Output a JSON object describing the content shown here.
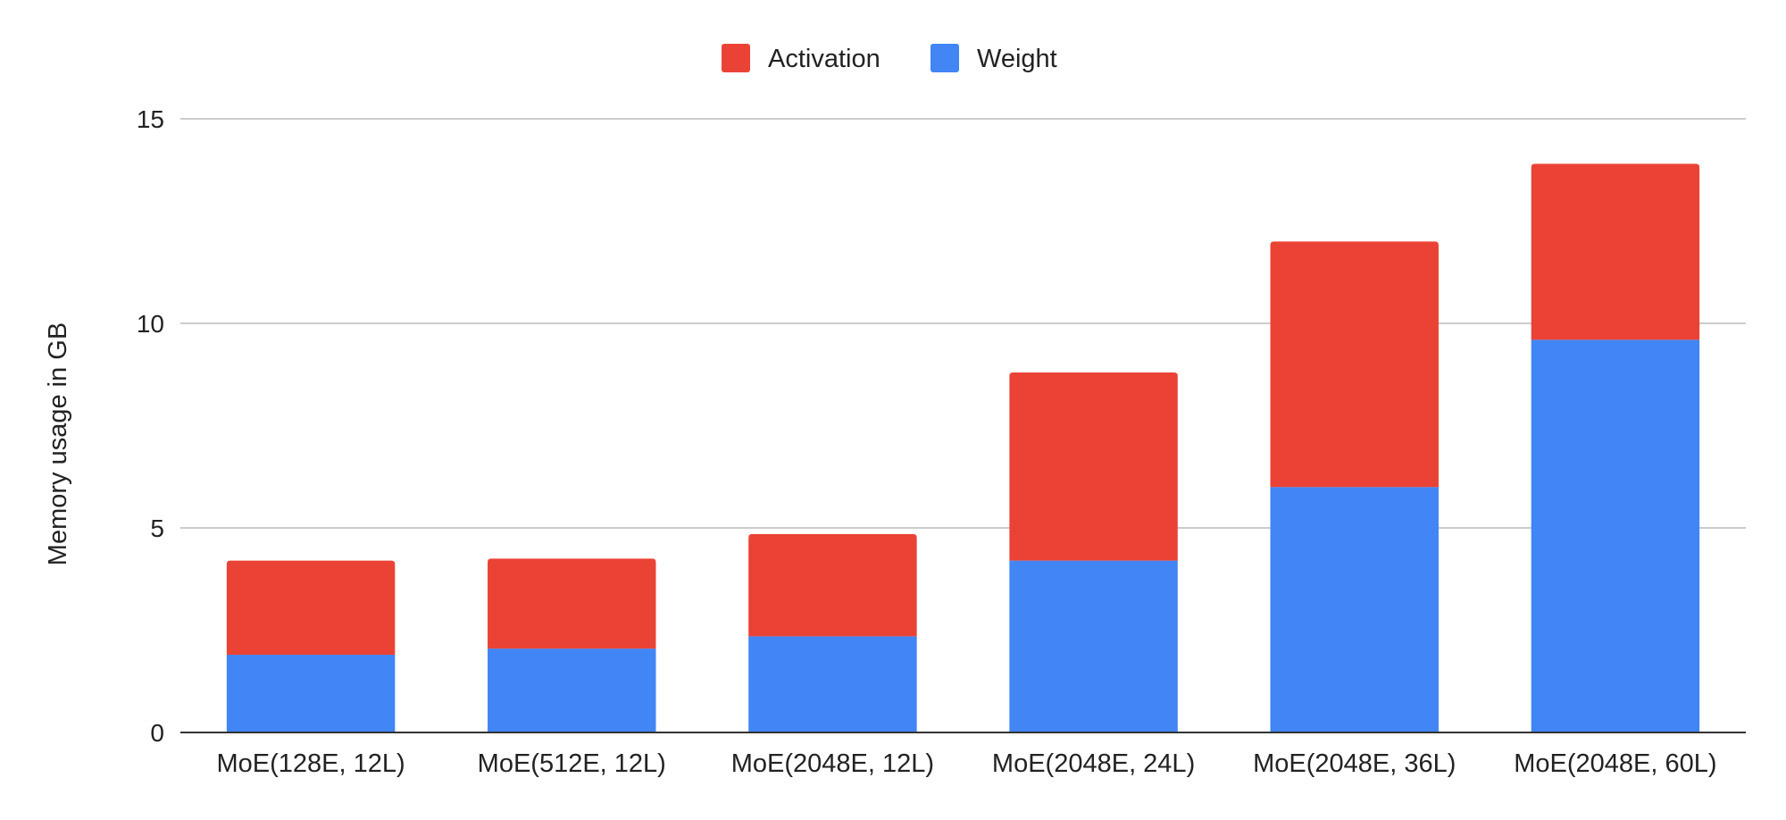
{
  "chart_data": {
    "type": "bar",
    "stacked": true,
    "title": "",
    "xlabel": "",
    "ylabel": "Memory usage in GB",
    "ylim": [
      0,
      15
    ],
    "yticks": [
      0,
      5,
      10,
      15
    ],
    "grid": true,
    "legend_position": "top",
    "categories": [
      "MoE(128E, 12L)",
      "MoE(512E, 12L)",
      "MoE(2048E, 12L)",
      "MoE(2048E, 24L)",
      "MoE(2048E, 36L)",
      "MoE(2048E, 60L)"
    ],
    "series": [
      {
        "name": "Weight",
        "color": "#4285f4",
        "values": [
          1.9,
          2.05,
          2.35,
          4.2,
          6.0,
          9.6
        ]
      },
      {
        "name": "Activation",
        "color": "#ea4335",
        "values": [
          2.3,
          2.2,
          2.5,
          4.6,
          6.0,
          4.3
        ]
      }
    ],
    "legend_order": [
      "Activation",
      "Weight"
    ]
  }
}
